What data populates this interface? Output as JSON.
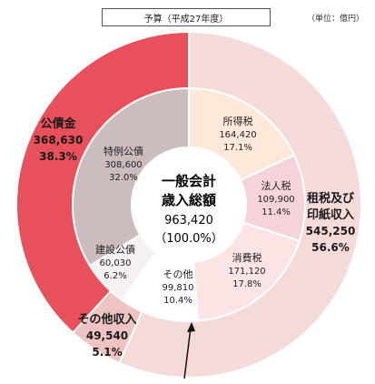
{
  "header": {
    "budget_label": "予算（平成27年度）",
    "unit_label": "（単位：億円）"
  },
  "center": {
    "line1": "一般会計",
    "line2": "歳入総額",
    "value": "963,420",
    "pct": "（100.0%）"
  },
  "colors": {
    "public_bond": "#e8505b",
    "public_bond_inner": "#cbbdbd",
    "tax": "#f5dada",
    "other": "#eec3c3"
  },
  "chart_data": {
    "type": "pie",
    "unit": "億円",
    "outer": [
      {
        "name": "公債金",
        "value": 368630,
        "value_label": "368,630",
        "pct_label": "38.3%",
        "color": "#e8505b"
      },
      {
        "name": "租税及び印紙収入",
        "name_lines": [
          "租税及び",
          "印紙収入"
        ],
        "value": 545250,
        "value_label": "545,250",
        "pct_label": "56.6%",
        "color": "#f5dada"
      },
      {
        "name": "その他収入",
        "value": 49540,
        "value_label": "49,540",
        "pct_label": "5.1%",
        "color": "#eec3c3"
      }
    ],
    "inner": [
      {
        "name": "特例公債",
        "value": 308600,
        "value_label": "308,600",
        "pct_label": "32.0%",
        "color": "#cbbdbd"
      },
      {
        "name": "建設公債",
        "value": 60030,
        "value_label": "60,030",
        "pct_label": "6.2%",
        "color": "#f6f0f0"
      },
      {
        "name": "所得税",
        "value": 164420,
        "value_label": "164,420",
        "pct_label": "17.1%",
        "color": "#fde8da"
      },
      {
        "name": "法人税",
        "value": 109900,
        "value_label": "109,900",
        "pct_label": "11.4%",
        "color": "#f4d4d8"
      },
      {
        "name": "消費税",
        "value": 171120,
        "value_label": "171,120",
        "pct_label": "17.8%",
        "color": "#fbe4e4"
      },
      {
        "name": "その他",
        "value": 99810,
        "value_label": "99,810",
        "pct_label": "10.4%",
        "color": "#ffffff"
      }
    ]
  }
}
